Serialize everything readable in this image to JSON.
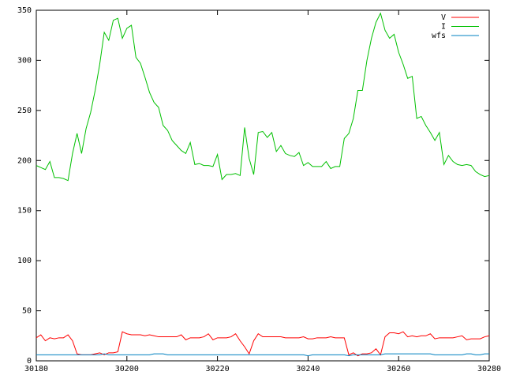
{
  "chart_data": {
    "type": "line",
    "x": [
      30180,
      30181,
      30182,
      30183,
      30184,
      30185,
      30186,
      30187,
      30188,
      30189,
      30190,
      30191,
      30192,
      30193,
      30194,
      30195,
      30196,
      30197,
      30198,
      30199,
      30200,
      30201,
      30202,
      30203,
      30204,
      30205,
      30206,
      30207,
      30208,
      30209,
      30210,
      30211,
      30212,
      30213,
      30214,
      30215,
      30216,
      30217,
      30218,
      30219,
      30220,
      30221,
      30222,
      30223,
      30224,
      30225,
      30226,
      30227,
      30228,
      30229,
      30230,
      30231,
      30232,
      30233,
      30234,
      30235,
      30236,
      30237,
      30238,
      30239,
      30240,
      30241,
      30242,
      30243,
      30244,
      30245,
      30246,
      30247,
      30248,
      30249,
      30250,
      30251,
      30252,
      30253,
      30254,
      30255,
      30256,
      30257,
      30258,
      30259,
      30260,
      30261,
      30262,
      30263,
      30264,
      30265,
      30266,
      30267,
      30268,
      30269,
      30270,
      30271,
      30272,
      30273,
      30274,
      30275,
      30276,
      30277,
      30278,
      30279,
      30280
    ],
    "series": [
      {
        "name": "V",
        "color": "#ff0000",
        "values": [
          23,
          26,
          20,
          23,
          22,
          23,
          23,
          26,
          20,
          7,
          6,
          6,
          6,
          7,
          8,
          6,
          8,
          8,
          9,
          29,
          27,
          26,
          26,
          26,
          25,
          26,
          25,
          24,
          24,
          24,
          24,
          24,
          26,
          21,
          23,
          23,
          23,
          24,
          27,
          21,
          23,
          23,
          23,
          24,
          27,
          20,
          14,
          7,
          20,
          27,
          24,
          24,
          24,
          24,
          24,
          23,
          23,
          23,
          23,
          24,
          22,
          22,
          23,
          23,
          23,
          24,
          23,
          23,
          23,
          6,
          8,
          5,
          7,
          7,
          8,
          12,
          6,
          24,
          28,
          28,
          27,
          29,
          24,
          25,
          24,
          25,
          25,
          27,
          22,
          23,
          23,
          23,
          23,
          24,
          25,
          21,
          22,
          22,
          22,
          24,
          25
        ]
      },
      {
        "name": "I",
        "color": "#00c000",
        "values": [
          195,
          193,
          191,
          199,
          183,
          183,
          182,
          180,
          207,
          227,
          207,
          232,
          248,
          270,
          296,
          328,
          320,
          340,
          342,
          322,
          332,
          335,
          303,
          297,
          283,
          268,
          258,
          253,
          235,
          230,
          220,
          215,
          210,
          207,
          218,
          196,
          197,
          195,
          195,
          194,
          206,
          181,
          186,
          186,
          187,
          185,
          233,
          202,
          186,
          228,
          229,
          223,
          228,
          209,
          215,
          207,
          205,
          204,
          208,
          195,
          198,
          194,
          194,
          194,
          199,
          192,
          194,
          194,
          222,
          227,
          242,
          270,
          270,
          300,
          322,
          338,
          347,
          330,
          322,
          326,
          308,
          296,
          282,
          284,
          242,
          244,
          235,
          228,
          220,
          228,
          196,
          205,
          199,
          196,
          195,
          196,
          195,
          189,
          186,
          184,
          185
        ]
      },
      {
        "name": "wfs",
        "color": "#0080c0",
        "values": [
          6,
          6,
          6,
          6,
          6,
          6,
          6,
          6,
          6,
          6,
          6,
          6,
          6,
          6,
          6,
          7,
          6,
          6,
          6,
          6,
          6,
          6,
          6,
          6,
          6,
          6,
          7,
          7,
          7,
          6,
          6,
          6,
          6,
          6,
          6,
          6,
          6,
          6,
          6,
          6,
          6,
          6,
          6,
          6,
          6,
          6,
          6,
          6,
          6,
          6,
          6,
          6,
          6,
          6,
          6,
          6,
          6,
          6,
          6,
          6,
          5,
          6,
          6,
          6,
          6,
          6,
          6,
          6,
          6,
          5,
          6,
          6,
          6,
          6,
          6,
          6,
          6,
          7,
          7,
          7,
          7,
          7,
          7,
          7,
          7,
          7,
          7,
          7,
          6,
          6,
          6,
          6,
          6,
          6,
          6,
          7,
          7,
          6,
          6,
          7,
          7
        ]
      }
    ],
    "xlim": [
      30180,
      30280
    ],
    "xticks": [
      30180,
      30200,
      30220,
      30240,
      30260,
      30280
    ],
    "ylim": [
      0,
      350
    ],
    "yticks": [
      0,
      50,
      100,
      150,
      200,
      250,
      300,
      350
    ],
    "legend": "top-right"
  }
}
